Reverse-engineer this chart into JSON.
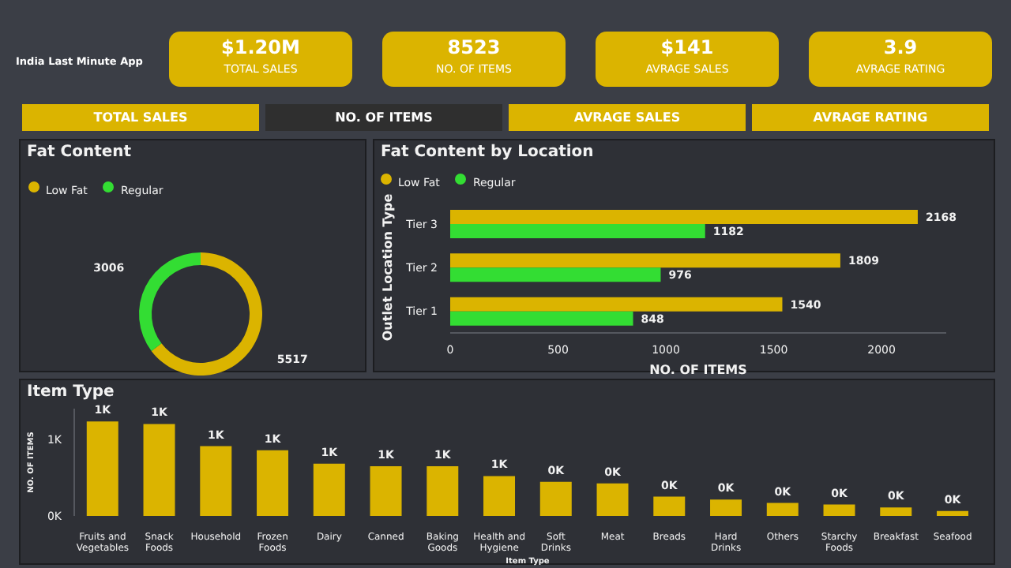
{
  "chart_data": [
    {
      "type": "other",
      "title": "India Last Minute App",
      "annotations": [
        "$1.20M",
        "TOTAL SALES",
        "8523",
        "NO. OF ITEMS",
        "$141",
        "AVRAGE SALES",
        "3.9",
        "AVRAGE RATING",
        "TOTAL SALES",
        "NO. OF ITEMS",
        "AVRAGE SALES",
        "AVRAGE RATING"
      ]
    },
    {
      "type": "donut",
      "title": "Fat Content",
      "categories": [
        "Low Fat",
        "Regular"
      ],
      "values": [
        5517,
        3006
      ],
      "colors": [
        "#dbb400",
        "#33dd33"
      ],
      "data_labels": true,
      "legend": "top left"
    },
    {
      "type": "bar",
      "orientation": "horizontal",
      "title": "Fat Content by Location",
      "categories": [
        "Tier 3",
        "Tier 2",
        "Tier 1"
      ],
      "xlabel": "NO. OF ITEMS",
      "ylabel": "Outlet Location Type",
      "xlim": [
        0,
        2300
      ],
      "xticks": [
        0,
        500,
        1000,
        1500,
        2000
      ],
      "data_labels": true,
      "legend": "top left",
      "series": [
        {
          "name": "Low Fat",
          "color": "#dbb400",
          "values": [
            2168,
            1809,
            1540
          ]
        },
        {
          "name": "Regular",
          "color": "#33dd33",
          "values": [
            1182,
            976,
            848
          ]
        }
      ]
    },
    {
      "type": "bar",
      "title": "Item Type",
      "xlabel": "Item Type",
      "ylabel": "NO. OF ITEMS",
      "categories": [
        "Fruits and Vegetables",
        "Snack Foods",
        "Household",
        "Frozen Foods",
        "Dairy",
        "Canned",
        "Baking Goods",
        "Health and Hygiene",
        "Soft Drinks",
        "Meat",
        "Breads",
        "Hard Drinks",
        "Others",
        "Starchy Foods",
        "Breakfast",
        "Seafood"
      ],
      "values": [
        1232,
        1200,
        910,
        856,
        682,
        649,
        648,
        520,
        445,
        425,
        251,
        214,
        169,
        148,
        110,
        64
      ],
      "color": "#dbb400",
      "value_labels": [
        "1K",
        "1K",
        "1K",
        "1K",
        "1K",
        "1K",
        "1K",
        "1K",
        "0K",
        "0K",
        "0K",
        "0K",
        "0K",
        "0K",
        "0K",
        "0K"
      ],
      "ylim": [
        0,
        1400
      ],
      "yticks": [
        {
          "value": 0,
          "label": "0K"
        },
        {
          "value": 1000,
          "label": "1K"
        }
      ]
    }
  ]
}
